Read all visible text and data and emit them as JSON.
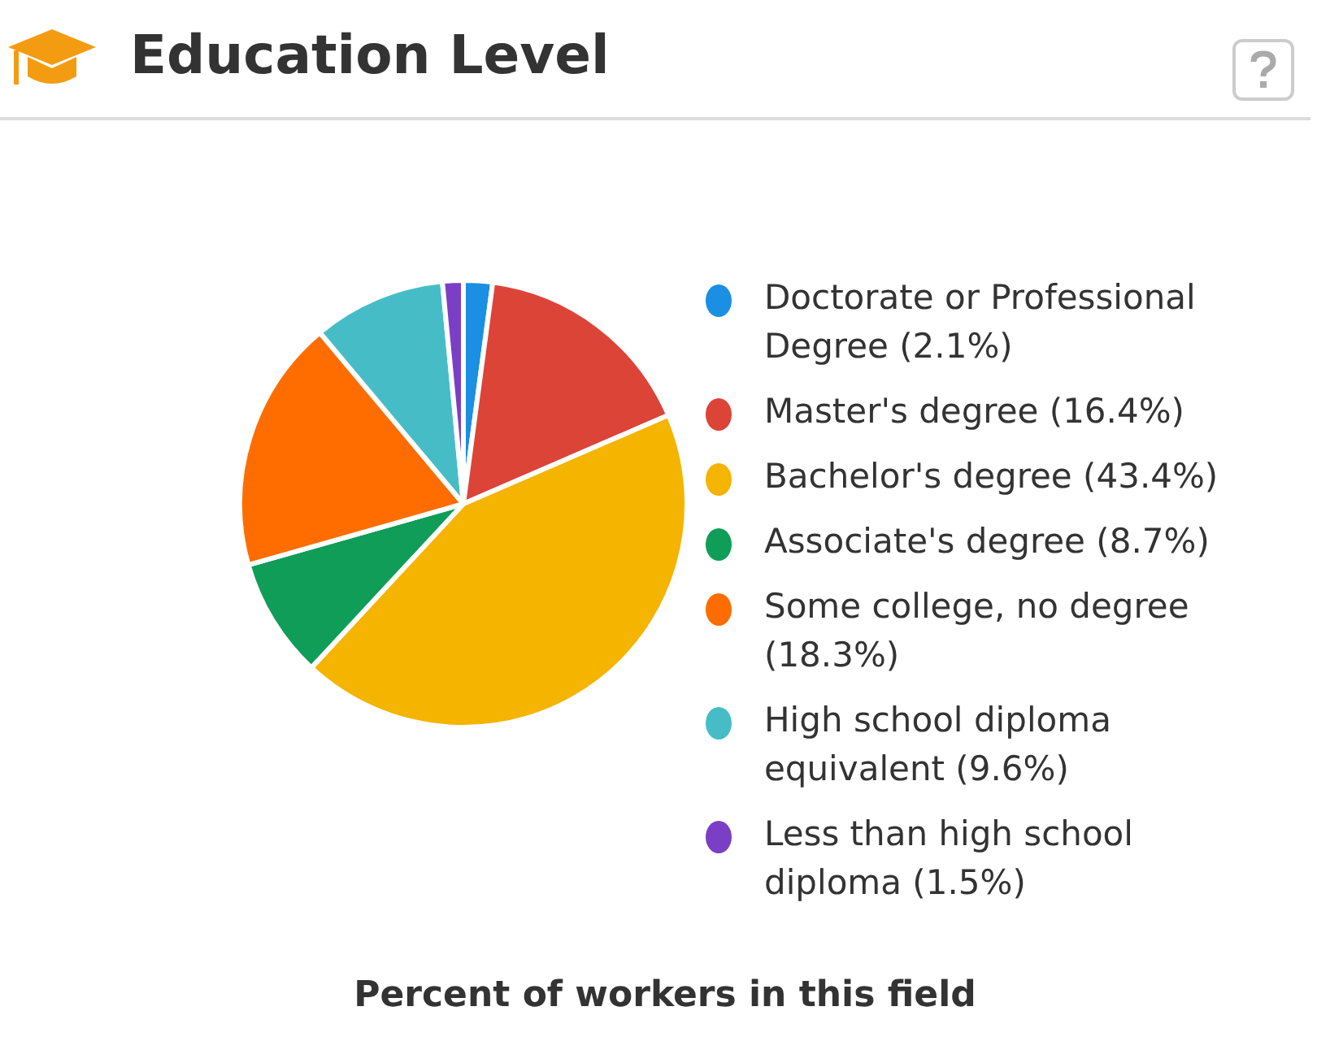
{
  "chart_data": {
    "type": "pie",
    "title": "Education Level",
    "categories": [
      "Doctorate or Professional Degree",
      "Master's degree",
      "Bachelor's degree",
      "Associate's degree",
      "Some college, no degree",
      "High school diploma equivalent",
      "Less than high school diploma"
    ],
    "values": [
      2.1,
      16.4,
      43.4,
      8.7,
      18.3,
      9.6,
      1.5
    ],
    "value_labels": [
      "(2.1%)",
      "(16.4%)",
      "(43.4%)",
      "(8.7%)",
      "(18.3%)",
      "(9.6%)",
      "(1.5%)"
    ],
    "colors": [
      "#1a8fe3",
      "#dc4437",
      "#f4b400",
      "#0f9d58",
      "#ff6d00",
      "#46bdc6",
      "#7b3fc6"
    ],
    "legend": "right",
    "annotations": [
      "Percent of workers in this field"
    ]
  }
}
